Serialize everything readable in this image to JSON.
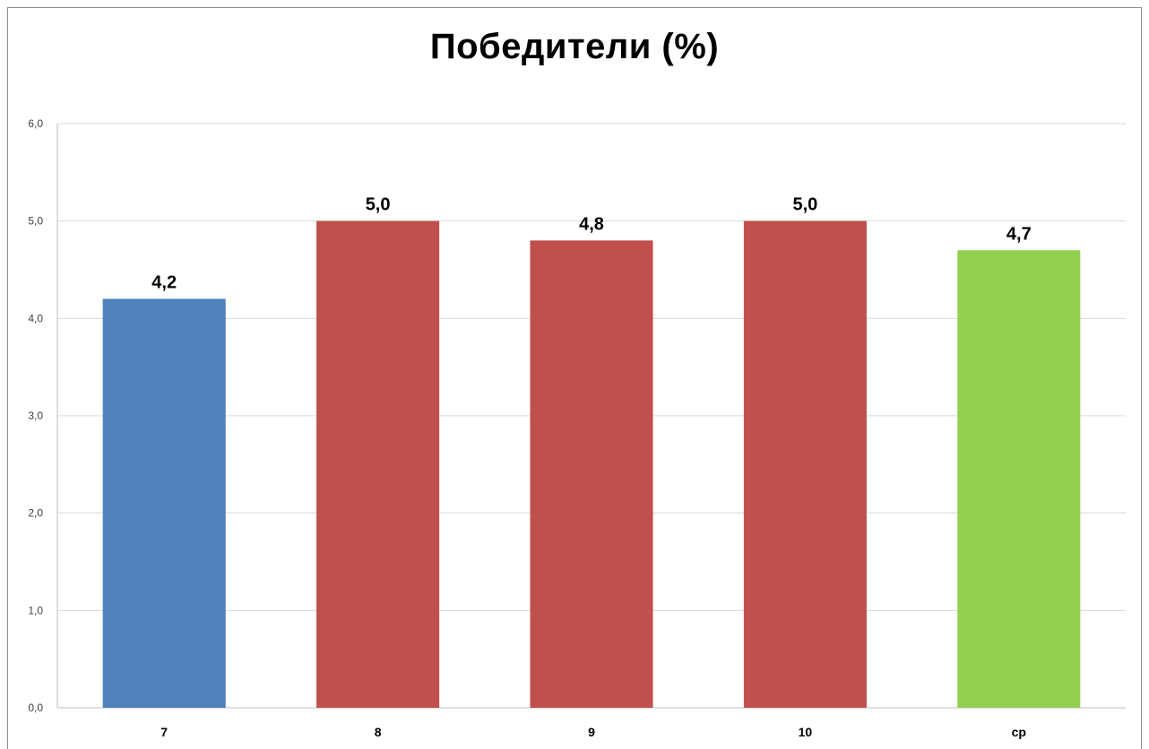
{
  "chart_data": {
    "type": "bar",
    "title": "Победители (%)",
    "categories": [
      "7",
      "8",
      "9",
      "10",
      "ср"
    ],
    "values": [
      4.2,
      5.0,
      4.8,
      5.0,
      4.7
    ],
    "data_labels": [
      "4,2",
      "5,0",
      "4,8",
      "5,0",
      "4,7"
    ],
    "bar_colors": [
      "#4f81bd",
      "#c0504d",
      "#c0504d",
      "#c0504d",
      "#92d050"
    ],
    "ylim": [
      0,
      6
    ],
    "yticks": [
      "0,0",
      "1,0",
      "2,0",
      "3,0",
      "4,0",
      "5,0",
      "6,0"
    ],
    "ytick_values": [
      0,
      1,
      2,
      3,
      4,
      5,
      6
    ],
    "grid": true,
    "legend": "none",
    "xlabel": "",
    "ylabel": ""
  }
}
